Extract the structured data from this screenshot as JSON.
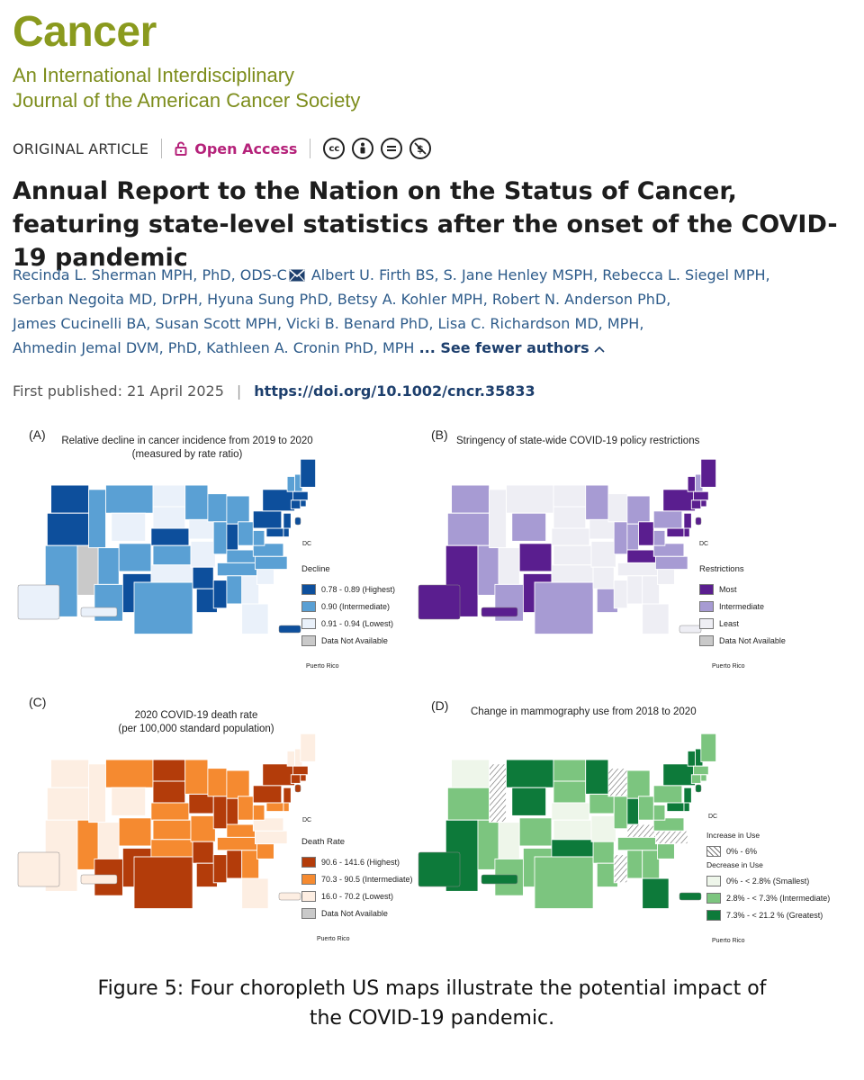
{
  "journal": {
    "name": "Cancer",
    "subtitle_line1": "An International Interdisciplinary",
    "subtitle_line2": "Journal of the American Cancer Society",
    "brand_color": "#8a9a1e"
  },
  "meta": {
    "article_type": "ORIGINAL ARTICLE",
    "open_access": "Open Access",
    "license_icons": [
      "cc-icon",
      "by-icon",
      "nd-icon",
      "nc-icon"
    ]
  },
  "article": {
    "title": "Annual Report to the Nation on the Status of Cancer, featuring state-level statistics after the onset of the COVID-19 pandemic",
    "authors_line1a": "Recinda L. Sherman MPH, PhD, ODS-C",
    "authors_line1b": " Albert U. Firth BS, S. Jane Henley MSPH, Rebecca L. Siegel MPH,",
    "authors_line2": "Serban Negoita MD, DrPH, Hyuna Sung PhD, Betsy A. Kohler MPH, Robert N. Anderson PhD,",
    "authors_line3": "James Cucinelli BA, Susan Scott MPH, Vicki B. Benard PhD, Lisa C. Richardson MD, MPH,",
    "authors_line4": "Ahmedin Jemal DVM, PhD, Kathleen A. Cronin PhD, MPH",
    "see_fewer": "... See fewer authors",
    "first_published_label": "First published:",
    "first_published_date": "21 April 2025",
    "doi": "https://doi.org/10.1002/cncr.35833"
  },
  "panels": {
    "a": {
      "label": "(A)",
      "title_line1": "Relative decline in cancer incidence from 2019 to 2020",
      "title_line2": "(measured by rate ratio)",
      "legend_title": "Decline",
      "legend": [
        "0.78 - 0.89 (Highest)",
        "0.90 (Intermediate)",
        "0.91 - 0.94 (Lowest)",
        "Data Not Available"
      ],
      "colors": [
        "#0d4f9c",
        "#5aa0d4",
        "#eaf1fa",
        "#c9c9c9"
      ],
      "dc": "DC",
      "pr": "Puerto Rico"
    },
    "b": {
      "label": "(B)",
      "title_line1": "Stringency of state-wide COVID-19 policy restrictions",
      "legend_title": "Restrictions",
      "legend": [
        "Most",
        "Intermediate",
        "Least",
        "Data Not Available"
      ],
      "colors": [
        "#5a1e8f",
        "#a79bd3",
        "#eeeef4",
        "#c9c9c9"
      ],
      "dc": "DC",
      "pr": "Puerto Rico"
    },
    "c": {
      "label": "(C)",
      "title_line1": "2020 COVID-19 death rate",
      "title_line2": "(per 100,000 standard population)",
      "legend_title": "Death Rate",
      "legend": [
        "90.6 - 141.6 (Highest)",
        "70.3 - 90.5 (Intermediate)",
        "16.0 - 70.2 (Lowest)",
        "Data Not Available"
      ],
      "colors": [
        "#b33c0a",
        "#f58a30",
        "#fdeee2",
        "#c9c9c9"
      ],
      "dc": "DC",
      "pr": "Puerto Rico"
    },
    "d": {
      "label": "(D)",
      "title_line1": "Change in mammography use from 2018 to 2020",
      "legend_increase": "Increase in Use",
      "legend_inc_item": "0% - 6%",
      "legend_decrease": "Decrease in Use",
      "legend": [
        "0% - < 2.8% (Smallest)",
        "2.8% - < 7.3% (Intermediate)",
        "7.3% - < 21.2 % (Greatest)"
      ],
      "colors": [
        "#eef6ea",
        "#7cc57f",
        "#0d7a3a"
      ],
      "dc": "DC",
      "pr": "Puerto Rico"
    }
  },
  "caption": {
    "line1": "Figure 5: Four choropleth US maps illustrate the potential impact of",
    "line2": "the COVID-19 pandemic."
  }
}
